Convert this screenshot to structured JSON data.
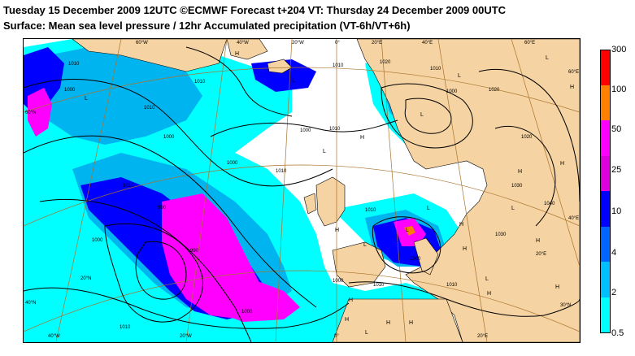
{
  "header": {
    "line1": "Tuesday 15 December 2009 12UTC ©ECMWF Forecast t+204 VT: Thursday 24 December 2009 00UTC",
    "line2": "Surface: Mean sea level pressure / 12hr Accumulated precipitation (VT-6h/VT+6h)"
  },
  "map": {
    "colors": {
      "sea": "#ffffff",
      "land": "#f5d3a3",
      "coast": "#000000",
      "graticule": "#a9732c",
      "isobar": "#000000",
      "precip_0_5": "#00ffff",
      "precip_2": "#00b4f0",
      "precip_4": "#0000ff",
      "precip_10": "#800080",
      "precip_25": "#ff00ff",
      "precip_50": "#ff8000"
    },
    "graticule_labels": [
      {
        "text": "60°W"
      },
      {
        "text": "40°W"
      },
      {
        "text": "20°W"
      },
      {
        "text": "0°"
      },
      {
        "text": "20°E"
      },
      {
        "text": "40°E"
      },
      {
        "text": "60°E"
      },
      {
        "text": "60°N"
      },
      {
        "text": "40°N"
      },
      {
        "text": "20°N"
      },
      {
        "text": "30°N"
      },
      {
        "text": "40°W"
      },
      {
        "text": "20°W"
      },
      {
        "text": "0°"
      },
      {
        "text": "20°E"
      },
      {
        "text": "60°E"
      },
      {
        "text": "40°E"
      },
      {
        "text": "20°E"
      }
    ],
    "isobar_labels": [
      {
        "text": "1010"
      },
      {
        "text": "1000"
      },
      {
        "text": "1010"
      },
      {
        "text": "1000"
      },
      {
        "text": "1010"
      },
      {
        "text": "990"
      },
      {
        "text": "1000"
      },
      {
        "text": "990"
      },
      {
        "text": "1000"
      },
      {
        "text": "1010"
      },
      {
        "text": "1000"
      },
      {
        "text": "1010"
      },
      {
        "text": "1020"
      },
      {
        "text": "1010"
      },
      {
        "text": "1000"
      },
      {
        "text": "1010"
      },
      {
        "text": "1020"
      },
      {
        "text": "1020"
      },
      {
        "text": "1030"
      },
      {
        "text": "1040"
      },
      {
        "text": "1030"
      },
      {
        "text": "1010"
      },
      {
        "text": "1000"
      },
      {
        "text": "1010"
      },
      {
        "text": "1000"
      },
      {
        "text": "1010"
      },
      {
        "text": "1010"
      },
      {
        "text": "1000"
      },
      {
        "text": "1010"
      }
    ],
    "pressure_centers": [
      {
        "text": "L"
      },
      {
        "text": "L"
      },
      {
        "text": "L"
      },
      {
        "text": "L"
      },
      {
        "text": "L"
      },
      {
        "text": "L"
      },
      {
        "text": "L"
      },
      {
        "text": "L"
      },
      {
        "text": "L"
      },
      {
        "text": "L"
      },
      {
        "text": "L"
      },
      {
        "text": "L"
      },
      {
        "text": "H"
      },
      {
        "text": "H"
      },
      {
        "text": "H"
      },
      {
        "text": "H"
      },
      {
        "text": "H"
      },
      {
        "text": "H"
      },
      {
        "text": "H"
      },
      {
        "text": "H"
      },
      {
        "text": "H"
      },
      {
        "text": "H"
      },
      {
        "text": "H"
      },
      {
        "text": "H"
      },
      {
        "text": "H"
      },
      {
        "text": "H"
      },
      {
        "text": "H"
      }
    ]
  },
  "legend": {
    "labels": [
      "300",
      "100",
      "50",
      "25",
      "10",
      "4",
      "2",
      "0.5"
    ],
    "colors": [
      "#ff0000",
      "#ff8000",
      "#ff00ff",
      "#dd00dd",
      "#0000ff",
      "#0066ff",
      "#00bfff",
      "#00ffff"
    ]
  }
}
